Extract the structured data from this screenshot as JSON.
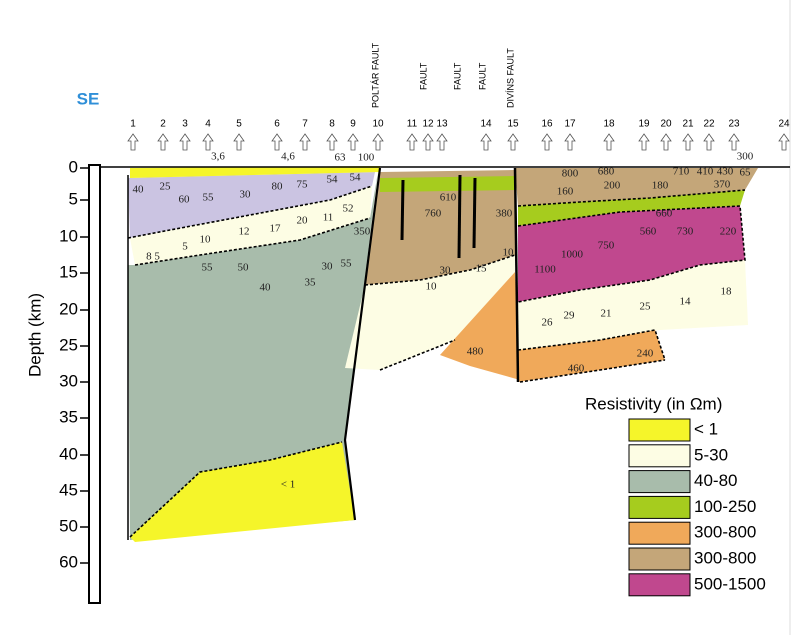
{
  "header": {
    "direction": "SE"
  },
  "faults": [
    "POLTÁR FAULT",
    "FAULT",
    "FAULT",
    "FAULT",
    "DIVÍNS FAULT"
  ],
  "stations": [
    "1",
    "2",
    "3",
    "4",
    "5",
    "6",
    "7",
    "8",
    "9",
    "10",
    "11",
    "12",
    "13",
    "14",
    "15",
    "16",
    "17",
    "18",
    "19",
    "20",
    "21",
    "22",
    "23",
    "24"
  ],
  "depth_axis": {
    "label": "Depth (km)",
    "ticks": [
      "0",
      "5",
      "10",
      "15",
      "20",
      "25",
      "30",
      "35",
      "40",
      "45",
      "50",
      "60"
    ]
  },
  "section_labels": [
    "3,6",
    "4,6",
    "63",
    "100",
    "40",
    "25",
    "60",
    "55",
    "30",
    "80",
    "75",
    "54",
    "54",
    "12",
    "17",
    "20",
    "11",
    "52",
    "10",
    "5",
    "8 5",
    "55",
    "50",
    "40",
    "35",
    "30",
    "55",
    "< 1",
    "760",
    "610",
    "350",
    "380",
    "10",
    "30",
    "10",
    "15",
    "480",
    "800",
    "680",
    "710",
    "410",
    "430",
    "300",
    "65",
    "160",
    "200",
    "180",
    "370",
    "660",
    "560",
    "730",
    "220",
    "1000",
    "750",
    "1100",
    "18",
    "14",
    "25",
    "21",
    "29",
    "26",
    "240",
    "460"
  ],
  "legend": {
    "title": "Resistivity (in Ωm)",
    "items": [
      {
        "label": "< 1",
        "color": "#f5f52a"
      },
      {
        "label": "5-30",
        "color": "#fdfde4"
      },
      {
        "label": "40-80",
        "color": "#a8bcab"
      },
      {
        "label": "100-250",
        "color": "#a6cc1e"
      },
      {
        "label": "300-800",
        "color": "#f0a95a"
      },
      {
        "label": "300-800",
        "color": "#c4a679"
      },
      {
        "label": "500-1500",
        "color": "#c0488e"
      }
    ]
  }
}
